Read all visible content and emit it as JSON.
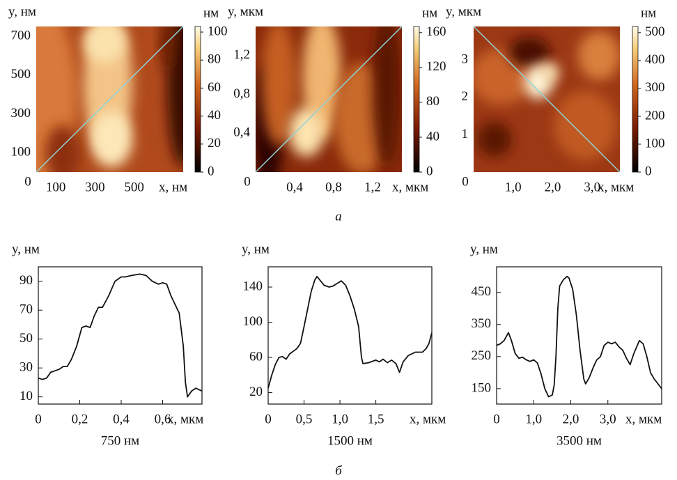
{
  "captions": [
    "а",
    "б"
  ],
  "chart_data": [
    {
      "type": "heatmap",
      "y_label": "y, нм",
      "x_label": "x, нм",
      "xlim": [
        0,
        750
      ],
      "ylim": [
        0,
        750
      ],
      "xticks": [
        0,
        100,
        300,
        500
      ],
      "yticks": [
        100,
        300,
        500,
        700
      ],
      "colorbar": {
        "label": "нм",
        "lim": [
          0,
          104
        ],
        "ticks": [
          0,
          20,
          40,
          60,
          80,
          100
        ]
      }
    },
    {
      "type": "heatmap",
      "y_label": "y, мкм",
      "x_label": "x, мкм",
      "xlim": [
        0,
        1.5
      ],
      "ylim": [
        0,
        1.5
      ],
      "xticks": [
        0,
        {
          "value": 0.4,
          "label": "0,4"
        },
        {
          "value": 0.8,
          "label": "0,8"
        },
        {
          "value": 1.2,
          "label": "1,2"
        }
      ],
      "yticks": [
        {
          "value": 0.4,
          "label": "0,4"
        },
        {
          "value": 0.8,
          "label": "0,8"
        },
        {
          "value": 1.2,
          "label": "1,2"
        }
      ],
      "colorbar": {
        "label": "нм",
        "lim": [
          0,
          167
        ],
        "ticks": [
          0,
          40,
          80,
          120,
          160
        ]
      }
    },
    {
      "type": "heatmap",
      "y_label": "y, мкм",
      "x_label": "x, мкм",
      "xlim": [
        0,
        3.7
      ],
      "ylim": [
        0,
        3.9
      ],
      "xticks": [
        0,
        {
          "value": 1,
          "label": "1,0"
        },
        {
          "value": 2,
          "label": "2,0"
        },
        {
          "value": 3,
          "label": "3,0"
        }
      ],
      "yticks": [
        1,
        2,
        3
      ],
      "colorbar": {
        "label": "нм",
        "lim": [
          0,
          522
        ],
        "ticks": [
          0,
          100,
          200,
          300,
          400,
          500
        ]
      }
    },
    {
      "type": "line",
      "y_label": "y, нм",
      "x_label": "x, мкм",
      "caption": "750 нм",
      "color": "#111",
      "xlim": [
        0,
        0.79
      ],
      "ylim": [
        5,
        100
      ],
      "xticks": [
        0,
        {
          "value": 0.2,
          "label": "0,2"
        },
        {
          "value": 0.4,
          "label": "0,4"
        },
        {
          "value": 0.6,
          "label": "0,6"
        }
      ],
      "yticks": [
        10,
        30,
        50,
        70,
        90
      ],
      "x": [
        0,
        0.02,
        0.04,
        0.06,
        0.08,
        0.1,
        0.12,
        0.14,
        0.16,
        0.185,
        0.21,
        0.23,
        0.25,
        0.27,
        0.29,
        0.31,
        0.34,
        0.37,
        0.4,
        0.42,
        0.45,
        0.49,
        0.52,
        0.55,
        0.58,
        0.6,
        0.62,
        0.64,
        0.66,
        0.68,
        0.7,
        0.71,
        0.72,
        0.74,
        0.76,
        0.79
      ],
      "values": [
        23,
        22,
        23,
        27,
        28,
        29,
        31,
        31,
        36,
        45,
        58,
        59,
        58,
        66,
        72,
        72,
        80,
        90,
        93,
        93,
        94,
        95,
        94,
        90,
        88,
        89,
        88,
        80,
        74,
        68,
        45,
        20,
        10,
        14,
        16,
        14
      ]
    },
    {
      "type": "line",
      "y_label": "y, нм",
      "x_label": "x, мкм",
      "caption": "1500 нм",
      "color": "#111",
      "xlim": [
        0,
        2.28
      ],
      "ylim": [
        7,
        163
      ],
      "xticks": [
        0,
        {
          "value": 0.5,
          "label": "0,5"
        },
        {
          "value": 1,
          "label": "1,0"
        },
        {
          "value": 1.5,
          "label": "1,5"
        }
      ],
      "yticks": [
        20,
        60,
        100,
        140
      ],
      "x": [
        0,
        0.05,
        0.1,
        0.15,
        0.2,
        0.25,
        0.3,
        0.35,
        0.4,
        0.45,
        0.5,
        0.55,
        0.6,
        0.65,
        0.68,
        0.72,
        0.78,
        0.85,
        0.9,
        0.96,
        1.02,
        1.08,
        1.14,
        1.2,
        1.26,
        1.3,
        1.32,
        1.4,
        1.5,
        1.55,
        1.6,
        1.66,
        1.72,
        1.78,
        1.83,
        1.88,
        1.95,
        2.05,
        2.15,
        2.2,
        2.24,
        2.28
      ],
      "values": [
        25,
        40,
        52,
        60,
        61,
        58,
        64,
        67,
        70,
        76,
        95,
        115,
        135,
        148,
        152,
        148,
        142,
        140,
        141,
        144,
        147,
        142,
        130,
        115,
        95,
        60,
        53,
        54,
        57,
        55,
        58,
        54,
        57,
        53,
        43,
        55,
        62,
        66,
        66,
        70,
        76,
        88
      ]
    },
    {
      "type": "line",
      "y_label": "y, нм",
      "x_label": "x, мкм",
      "caption": "3500 нм",
      "color": "#111",
      "xlim": [
        0,
        4.45
      ],
      "ylim": [
        102,
        530
      ],
      "xticks": [
        0,
        {
          "value": 1,
          "label": "1,0"
        },
        {
          "value": 2,
          "label": "2,0"
        },
        {
          "value": 3,
          "label": "3,0"
        }
      ],
      "yticks": [
        150,
        250,
        350,
        450
      ],
      "x": [
        0,
        0.1,
        0.2,
        0.32,
        0.4,
        0.5,
        0.6,
        0.7,
        0.8,
        0.9,
        1.0,
        1.1,
        1.2,
        1.3,
        1.4,
        1.5,
        1.55,
        1.6,
        1.65,
        1.7,
        1.8,
        1.9,
        1.95,
        2.05,
        2.15,
        2.25,
        2.35,
        2.4,
        2.5,
        2.6,
        2.7,
        2.8,
        2.9,
        3.0,
        3.1,
        3.2,
        3.3,
        3.4,
        3.5,
        3.6,
        3.7,
        3.85,
        3.95,
        4.05,
        4.15,
        4.25,
        4.35,
        4.45
      ],
      "values": [
        285,
        290,
        300,
        325,
        300,
        260,
        245,
        248,
        240,
        235,
        240,
        230,
        195,
        150,
        125,
        130,
        160,
        250,
        400,
        470,
        490,
        500,
        495,
        460,
        380,
        270,
        180,
        165,
        185,
        215,
        240,
        250,
        285,
        295,
        290,
        295,
        280,
        270,
        245,
        225,
        260,
        300,
        290,
        250,
        200,
        180,
        165,
        150
      ]
    }
  ]
}
